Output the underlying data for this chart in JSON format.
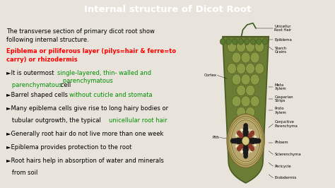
{
  "title": "Internal structure of Dicot Root",
  "title_bg": "#1b3a6b",
  "title_color": "#ffffff",
  "bg_color": "#e8e4dc",
  "intro_line1": "The transverse section of primary dicot root show",
  "intro_line2": "following internal structure.",
  "heading_red": "Epiblema or piliferous layer (pilys=hair & ferre=to\ncarry) or rhizodermis",
  "b0_black": "►It is outermost ",
  "b0_green": "single-layered, thin- walled and\n   parenchymatous",
  "b0_black2": " cell",
  "b1_black": "►Barrel shaped cells ",
  "b1_green": "without cuticle and stomata",
  "b2_black": "►Many epiblema cells give rise to long hairy bodies or\n   tubular outgrowth, the typical ",
  "b2_green": "unicellular root hair",
  "b3": "►Generally root hair do not live more than one week",
  "b4": "►Epiblema provides protection to the root",
  "b5_line1": "►Root hairs help in absorption of water and minerals",
  "b5_line2": "   from soil",
  "labels_right": [
    "Unicellur\nRoot Hair",
    "Epiblema",
    "Starch\nGrains",
    "Meta\nXylem",
    "Casparian\nStrips",
    "Proto\nXylem",
    "Conjuctive\nParenchyma",
    "Phloem",
    "Sclerenchyma",
    "Pericycle",
    "Endodermis"
  ],
  "label_left1": "Cortex",
  "label_left2": "Pith",
  "outer_green": "#6b7d35",
  "cell_fill": "#8a9a45",
  "cell_edge": "#4a5a20",
  "stele_fill": "#b0a060",
  "stele_edge": "#7a6a30",
  "xylem_color": "#1a1a1a",
  "phloem_color": "#8b3a2a",
  "pith_color": "#d4c880",
  "epiblema_color": "#5a7a30",
  "root_hair_color": "#3a5a1e"
}
